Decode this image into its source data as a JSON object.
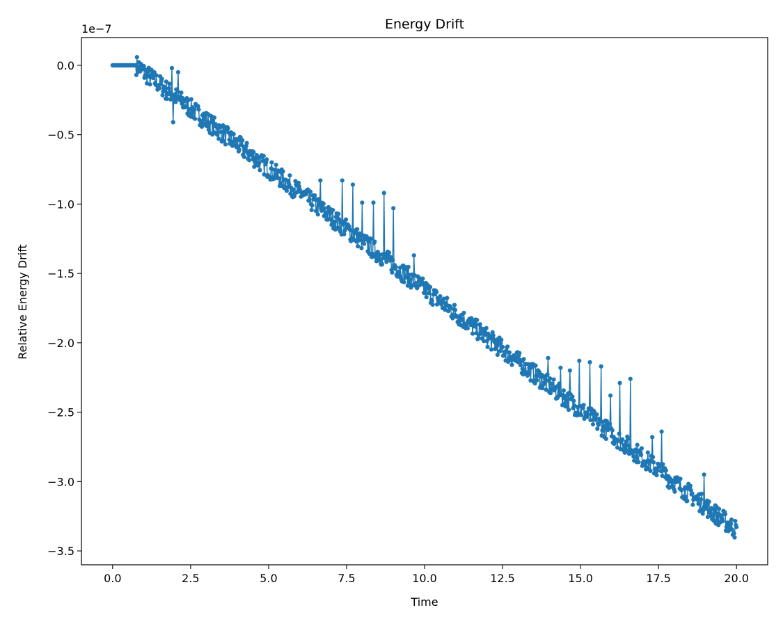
{
  "chart_data": {
    "type": "line",
    "title": "Energy Drift",
    "xlabel": "Time",
    "ylabel": "Relative Energy Drift",
    "y_offset_label": "1e−7",
    "x_ticks": [
      "0.0",
      "2.5",
      "5.0",
      "7.5",
      "10.0",
      "12.5",
      "15.0",
      "17.5",
      "20.0"
    ],
    "y_ticks": [
      "0.0",
      "−0.5",
      "−1.0",
      "−1.5",
      "−2.0",
      "−2.5",
      "−3.0",
      "−3.5"
    ],
    "xlim": [
      -1.0,
      21.0
    ],
    "ylim": [
      -3.6e-07,
      2e-08
    ],
    "grid": false,
    "series": [
      {
        "color": "#1f77b4",
        "marker": "circle",
        "trend": [
          [
            0.0,
            0.0
          ],
          [
            0.8,
            0.0
          ],
          [
            1.0,
            -5e-09
          ],
          [
            20.0,
            -3.35e-07
          ]
        ],
        "noise_amplitude": 7e-09,
        "sample_spacing": 0.02,
        "spikes": [
          [
            1.9,
            -2e-09
          ],
          [
            2.1,
            -5e-09
          ],
          [
            6.65,
            -8.3e-08
          ],
          [
            7.35,
            -8.3e-08
          ],
          [
            7.7,
            -8.6e-08
          ],
          [
            8.0,
            -9.9e-08
          ],
          [
            8.35,
            -9.9e-08
          ],
          [
            8.7,
            -9.2e-08
          ],
          [
            9.0,
            -1.03e-07
          ],
          [
            9.65,
            -1.37e-07
          ],
          [
            13.95,
            -2.11e-07
          ],
          [
            14.35,
            -2.18e-07
          ],
          [
            14.65,
            -2.2e-07
          ],
          [
            14.95,
            -2.13e-07
          ],
          [
            15.3,
            -2.14e-07
          ],
          [
            15.65,
            -2.17e-07
          ],
          [
            15.95,
            -2.38e-07
          ],
          [
            16.25,
            -2.29e-07
          ],
          [
            16.6,
            -2.26e-07
          ],
          [
            17.3,
            -2.68e-07
          ],
          [
            17.6,
            -2.64e-07
          ],
          [
            18.95,
            -2.95e-07
          ]
        ],
        "dips": [
          [
            1.95,
            -4.1e-08
          ],
          [
            1.7,
            -2.4e-08
          ]
        ]
      }
    ]
  }
}
